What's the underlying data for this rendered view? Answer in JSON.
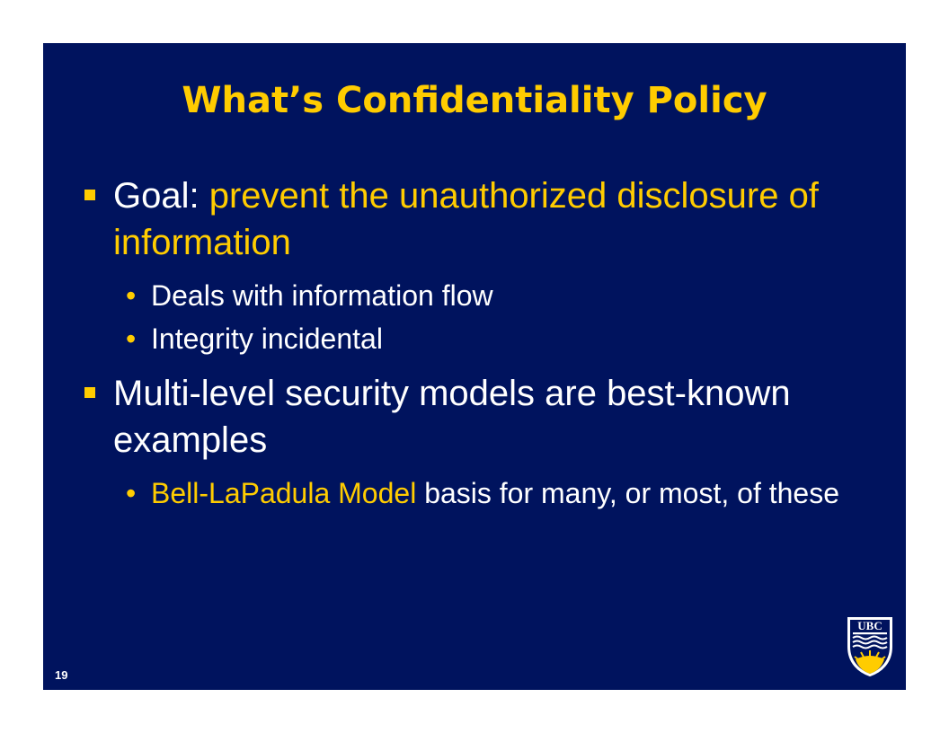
{
  "slide": {
    "title": "What’s Confidentiality Policy",
    "bullets": [
      {
        "prefix": "Goal: ",
        "highlight": "prevent the unauthorized disclosure of information",
        "subs": [
          "Deals with information flow",
          "Integrity incidental"
        ]
      },
      {
        "text": "Multi-level security models are best-known examples",
        "subs": [
          {
            "highlight": "Bell-LaPadula Model",
            "rest": " basis for many, or most, of these"
          }
        ]
      }
    ],
    "page_number": "19",
    "logo_text": "UBC",
    "bullet_glyph": "•",
    "colors": {
      "background": "#00135e",
      "accent": "#ffcc00",
      "text": "#ffffff"
    }
  }
}
